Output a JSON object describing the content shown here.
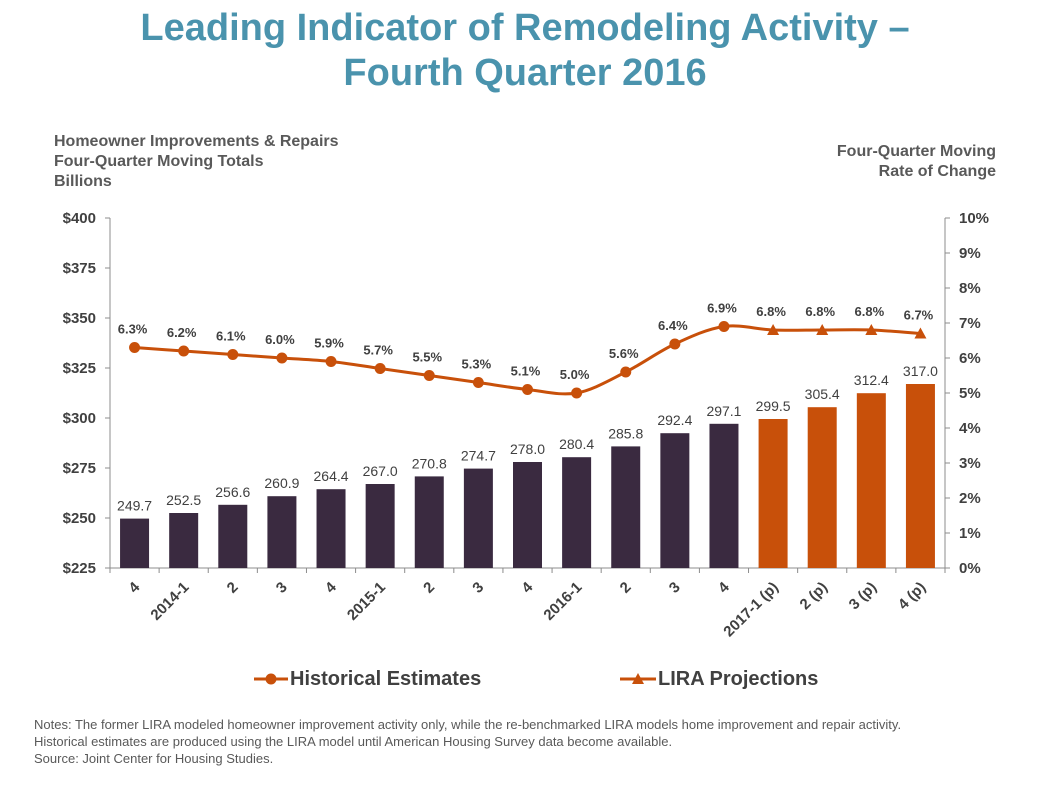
{
  "title": {
    "line1": "Leading Indicator of Remodeling Activity –",
    "line2": "Fourth Quarter 2016"
  },
  "left_axis_label": [
    "Homeowner Improvements & Repairs",
    "Four-Quarter Moving Totals",
    "Billions"
  ],
  "right_axis_label": [
    "Four-Quarter Moving",
    "Rate of Change"
  ],
  "legend": {
    "historical": "Historical Estimates",
    "projections": "LIRA Projections"
  },
  "notes": [
    "Notes: The former LIRA modeled homeowner improvement activity only, while the re-benchmarked LIRA models home improvement and repair activity.",
    "Historical estimates are produced using the LIRA model until American Housing Survey data become available.",
    "Source: Joint Center for Housing Studies."
  ],
  "colors": {
    "title": "#4a93ad",
    "historical_bar": "#3a2a40",
    "projection_bar": "#c8500a",
    "line": "#c8500a",
    "text": "#404040"
  },
  "chart_data": {
    "type": "bar",
    "categories": [
      "4",
      "2014-1",
      "2",
      "3",
      "4",
      "2015-1",
      "2",
      "3",
      "4",
      "2016-1",
      "2",
      "3",
      "4",
      "2017-1 (p)",
      "2 (p)",
      "3 (p)",
      "4 (p)"
    ],
    "bar_values": [
      249.7,
      252.5,
      256.6,
      260.9,
      264.4,
      267.0,
      270.8,
      274.7,
      278.0,
      280.4,
      285.8,
      292.4,
      297.1,
      299.5,
      305.4,
      312.4,
      317.0
    ],
    "bar_labels": [
      "249.7",
      "252.5",
      "256.6",
      "260.9",
      "264.4",
      "267.0",
      "270.8",
      "274.7",
      "278.0",
      "280.4",
      "285.8",
      "292.4",
      "297.1",
      "299.5",
      "305.4",
      "312.4",
      "317.0"
    ],
    "projection_start_index": 13,
    "rate_values": [
      6.3,
      6.2,
      6.1,
      6.0,
      5.9,
      5.7,
      5.5,
      5.3,
      5.1,
      5.0,
      5.6,
      6.4,
      6.9,
      6.8,
      6.8,
      6.8,
      6.7
    ],
    "rate_labels": [
      "6.3%",
      "6.2%",
      "6.1%",
      "6.0%",
      "5.9%",
      "5.7%",
      "5.5%",
      "5.3%",
      "5.1%",
      "5.0%",
      "5.6%",
      "6.4%",
      "6.9%",
      "6.8%",
      "6.8%",
      "6.8%",
      "6.7%"
    ],
    "left_axis": {
      "min": 225,
      "max": 400,
      "ticks": [
        225,
        250,
        275,
        300,
        325,
        350,
        375,
        400
      ],
      "tick_labels": [
        "$225",
        "$250",
        "$275",
        "$300",
        "$325",
        "$350",
        "$375",
        "$400"
      ]
    },
    "right_axis": {
      "min": 0,
      "max": 10,
      "ticks": [
        0,
        1,
        2,
        3,
        4,
        5,
        6,
        7,
        8,
        9,
        10
      ],
      "tick_labels": [
        "0%",
        "1%",
        "2%",
        "3%",
        "4%",
        "5%",
        "6%",
        "7%",
        "8%",
        "9%",
        "10%"
      ]
    },
    "series": [
      {
        "name": "Historical Estimates",
        "kind": "line",
        "marker": "circle"
      },
      {
        "name": "LIRA Projections",
        "kind": "line",
        "marker": "triangle"
      }
    ],
    "grid": false,
    "legend_position": "bottom"
  }
}
